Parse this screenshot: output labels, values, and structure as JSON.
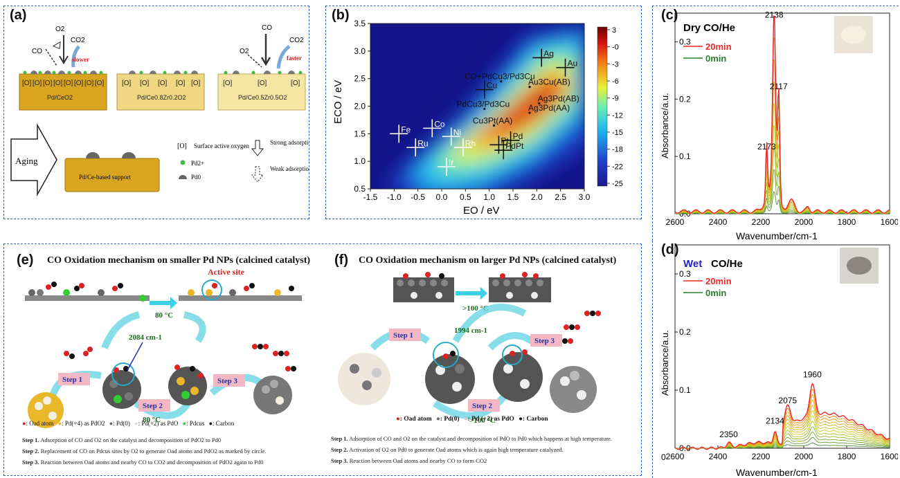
{
  "panel_a": {
    "label": "(a)",
    "co": "CO",
    "o2": "O2",
    "co2": "CO2",
    "slower": "slower",
    "faster": "faster",
    "o_marks": [
      "[O]",
      "[O]",
      "[O]",
      "[O]",
      "[O]",
      "[O]",
      "[O]",
      "[O]"
    ],
    "o_marks_mid": [
      "[O]",
      "[O]",
      "[O]",
      "[O]",
      "[O]"
    ],
    "o_marks_right": [
      "[O]",
      "[O]",
      "[O]"
    ],
    "slab1": "Pd/CeO2",
    "slab2": "Pd/Ce0.8Zr0.2O2",
    "slab3": "Pd/Ce0.5Zr0.5O2",
    "aging": "Aging",
    "support": "Pd/Ce-based support",
    "leg_o_mark": "[O]",
    "leg_o": "Surface active oxygen",
    "leg_pd2": "Pd2+",
    "leg_pd0": "Pd0",
    "leg_strong": "Strong adsorption",
    "leg_weak": "Weak adsorption"
  },
  "panel_b": {
    "label": "(b)",
    "xlabel": "EO / eV",
    "ylabel": "ECO / eV",
    "xticks": [
      "-1.5",
      "-1.0",
      "-0.5",
      "0.0",
      "0.5",
      "1.0",
      "1.5",
      "2.0",
      "2.5",
      "3.0"
    ],
    "yticks": [
      "0.5",
      "1.0",
      "1.5",
      "2.0",
      "2.5",
      "3.0",
      "3.5"
    ],
    "cbar_ticks": [
      "3",
      "-0",
      "-3",
      "-6",
      "-9",
      "-12",
      "-15",
      "-18",
      "-22",
      "-25"
    ],
    "metals": [
      {
        "name": "Fe",
        "x": -0.9,
        "y": 1.5
      },
      {
        "name": "Co",
        "x": -0.2,
        "y": 1.6
      },
      {
        "name": "Ru",
        "x": -0.55,
        "y": 1.25
      },
      {
        "name": "Ni",
        "x": 0.2,
        "y": 1.45
      },
      {
        "name": "Rh",
        "x": 0.45,
        "y": 1.25
      },
      {
        "name": "Ir",
        "x": 0.1,
        "y": 0.9
      },
      {
        "name": "Pt",
        "x": 1.2,
        "y": 1.3
      },
      {
        "name": "Pd",
        "x": 1.45,
        "y": 1.38
      },
      {
        "name": "PdPt",
        "x": 1.3,
        "y": 1.2
      },
      {
        "name": "Cu",
        "x": 0.9,
        "y": 2.3
      },
      {
        "name": "Ag",
        "x": 2.1,
        "y": 2.88
      },
      {
        "name": "Au",
        "x": 2.6,
        "y": 2.7
      }
    ],
    "alloys": [
      {
        "name": "CO+PdCu3/Pd3Cu",
        "x": 1.25,
        "y": 2.45
      },
      {
        "name": "Au3Cu(AB)",
        "x": 1.85,
        "y": 2.35
      },
      {
        "name": "PdCu3/Pd3Cu",
        "x": 0.9,
        "y": 1.95
      },
      {
        "name": "Ag3Pd(AB)",
        "x": 2.05,
        "y": 2.05
      },
      {
        "name": "Ag3Pd(AA)",
        "x": 1.85,
        "y": 1.88
      },
      {
        "name": "Cu3Pt(AA)",
        "x": 1.1,
        "y": 1.65
      }
    ]
  },
  "panel_c": {
    "label": "(c)",
    "title": "Dry CO/He",
    "legend": [
      "20min",
      "0min"
    ],
    "peaks": [
      {
        "label": "2138",
        "x": 2138,
        "y": 0.335
      },
      {
        "label": "2117",
        "x": 2117,
        "y": 0.21
      },
      {
        "label": "2173",
        "x": 2173,
        "y": 0.105
      }
    ],
    "xlabel": "Wavenumber/cm-1",
    "ylabel": "Absorbance/a.u.",
    "xticks": [
      "2600",
      "2400",
      "2200",
      "2000",
      "1800",
      "1600"
    ],
    "yticks": [
      "0.0",
      "0.1",
      "0.2",
      "0.3"
    ]
  },
  "panel_d": {
    "label": "(d)",
    "title_a": "Wet",
    "title_b": "CO/He",
    "legend": [
      "20min",
      "0min"
    ],
    "peaks": [
      {
        "label": "1960",
        "x": 1960,
        "y": 0.115
      },
      {
        "label": "2075",
        "x": 2075,
        "y": 0.07
      },
      {
        "label": "2134",
        "x": 2134,
        "y": 0.035
      },
      {
        "label": "2350",
        "x": 2350,
        "y": 0.012
      }
    ],
    "xlabel": "Wavenumber/cm-1",
    "ylabel": "Absorbance/a.u.",
    "xticks": [
      "2600",
      "2400",
      "2200",
      "2000",
      "1800",
      "1600"
    ],
    "yticks": [
      "0.0",
      "0.1",
      "0.2",
      "0.3"
    ],
    "zero": "0"
  },
  "panel_e": {
    "label": "(e)",
    "title": "CO Oxidation mechanism on smaller Pd NPs (calcined catalyst)",
    "active_site": "Active site",
    "temp1": "80 °C",
    "temp2": "80 °C",
    "wavenumber": "2084 cm-1",
    "step1": "Step 1",
    "step2": "Step 2",
    "step3": "Step 3",
    "legend": [
      ": Oad atom",
      ": Pd(+4) as PdO2",
      ": Pd(0)",
      ": Pd(+2) as PdO",
      ": Pdcus",
      ": Carbon"
    ],
    "notes": [
      {
        "head": "Step 1.",
        "text": " Adsorption of CO and O2 on the catalyst and decomposition of PdO2 to Pd0"
      },
      {
        "head": "Step 2.",
        "text": " Replacement of CO on Pdcus sites by O2 to generate Oad atoms and PdO2 as marked by circle."
      },
      {
        "head": "Step 3.",
        "text": " Reaction between Oad atoms and nearby CO to CO2 and decomposition of PdO2 again to Pd0"
      }
    ]
  },
  "panel_f": {
    "label": "(f)",
    "title": "CO Oxidation mechanism on larger Pd NPs (calcined catalyst)",
    "temp1": ">100 °C",
    "temp2": ">100 °C",
    "wavenumber": "1994 cm-1",
    "step1": "Step 1",
    "step2": "Step 2",
    "step3": "Step 3",
    "legend": [
      ": Oad atom",
      ": Pd(0)",
      ": Pd (+2) as PdO",
      ": Carbon"
    ],
    "notes": [
      {
        "head": "Step 1.",
        "text": " Adsorption of CO and O2 on the catalyst and decomposition of PdO to Pd0 which happens at high    temperature."
      },
      {
        "head": "Step 2.",
        "text": " Activation of O2 on Pd0 to generate Oad atoms which is again high temperature catalyzed."
      },
      {
        "head": "Step 3.",
        "text": " Reaction between Oad atoms and nearby CO to form CO2"
      }
    ]
  },
  "colors": {
    "frame": "#3a5fb0",
    "red_line": "#e8282a",
    "green_line": "#2d7d2d",
    "slab": "#d9a521",
    "teal_arrow": "#5fd3e0",
    "step_box": "#f2b8c6"
  }
}
